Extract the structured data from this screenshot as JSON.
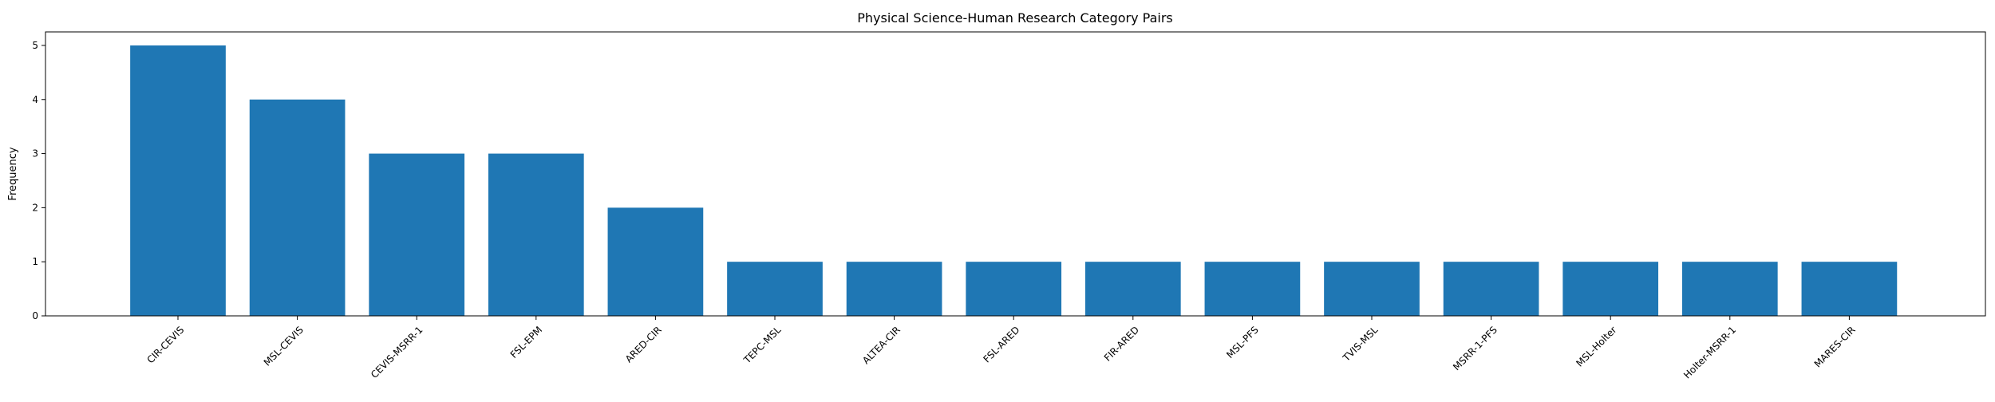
{
  "chart_data": {
    "type": "bar",
    "title": "Physical Science-Human Research Category Pairs",
    "xlabel": "",
    "ylabel": "Frequency",
    "categories": [
      "CIR-CEVIS",
      "MSL-CEVIS",
      "CEVIS-MSRR-1",
      "FSL-EPM",
      "ARED-CIR",
      "TEPC-MSL",
      "ALTEA-CIR",
      "FSL-ARED",
      "FIR-ARED",
      "MSL-PFS",
      "TVIS-MSL",
      "MSRR-1-PFS",
      "MSL-Holter",
      "Holter-MSRR-1",
      "MARES-CIR"
    ],
    "values": [
      5,
      4,
      3,
      3,
      2,
      1,
      1,
      1,
      1,
      1,
      1,
      1,
      1,
      1,
      1
    ],
    "ylim": [
      0,
      5.25
    ],
    "yticks": [
      "0",
      "1",
      "2",
      "3",
      "4",
      "5"
    ],
    "bar_color": "#1f77b4",
    "grid": false,
    "legend": "none",
    "xtick_rotation": 45
  }
}
